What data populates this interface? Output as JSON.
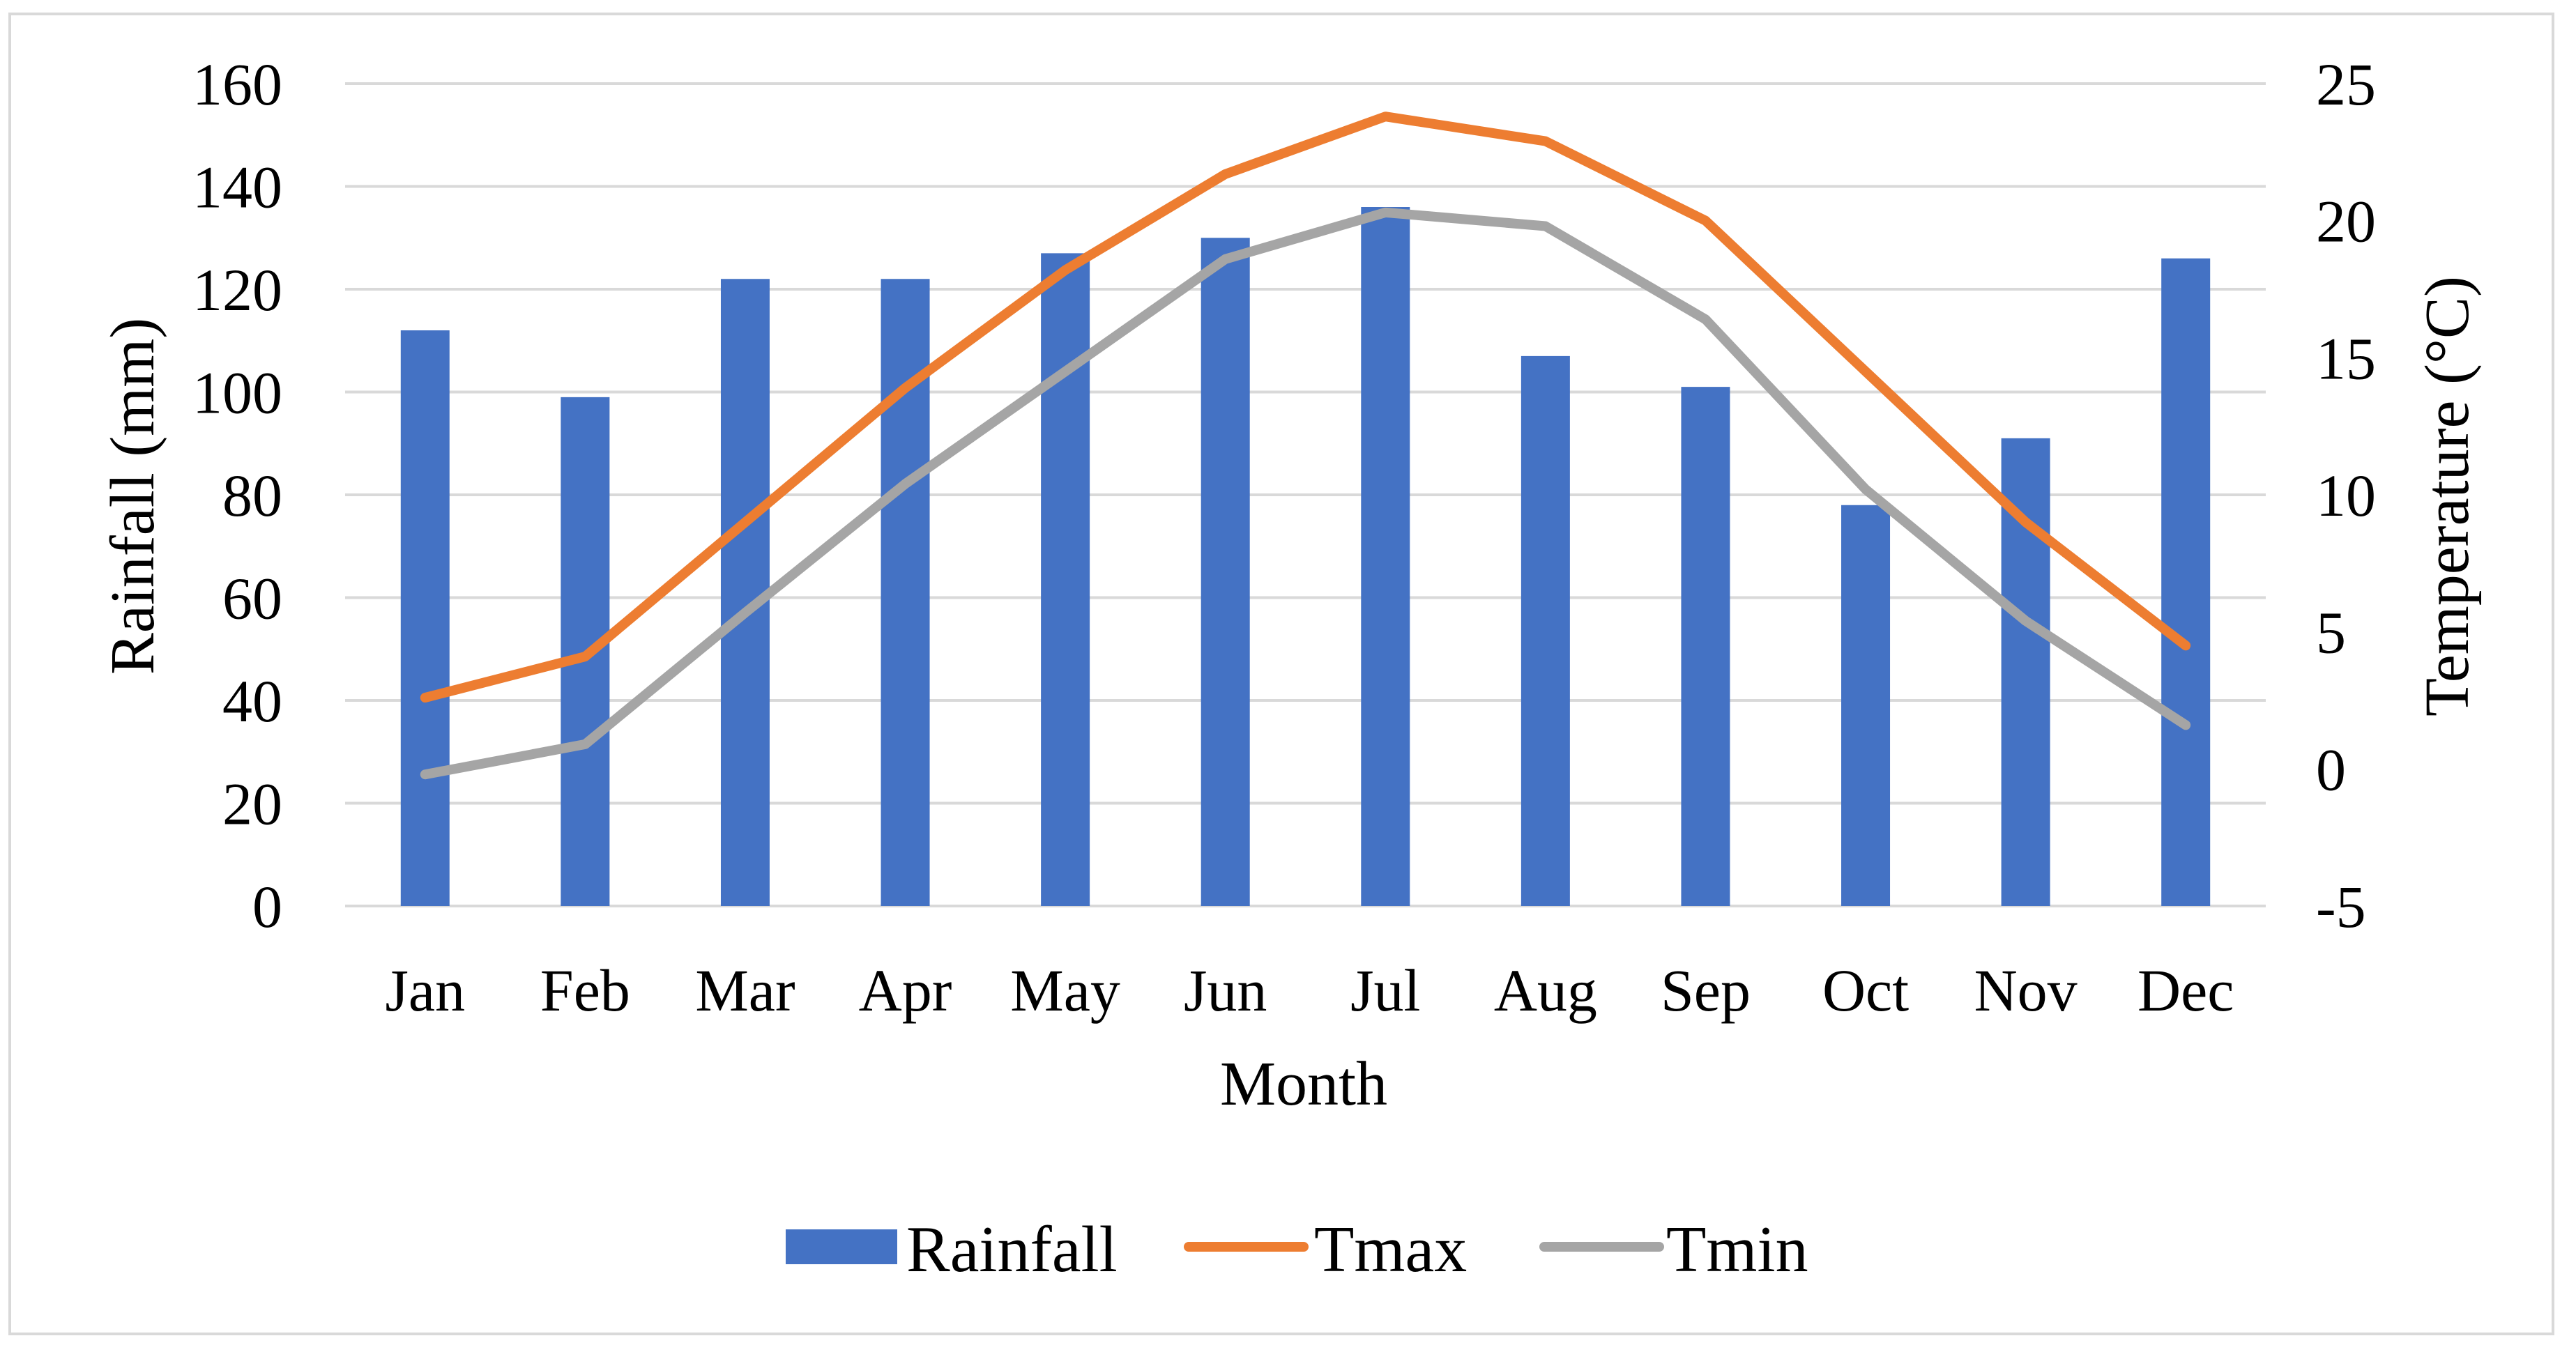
{
  "chart_data": {
    "type": "bar+line",
    "categories": [
      "Jan",
      "Feb",
      "Mar",
      "Apr",
      "May",
      "Jun",
      "Jul",
      "Aug",
      "Sep",
      "Oct",
      "Nov",
      "Dec"
    ],
    "xlabel": "Month",
    "ylabel_left": "Rainfall (mm)",
    "ylabel_right": "Temperature (°C)",
    "ylim_left": [
      0,
      160
    ],
    "yticks_left": [
      0,
      20,
      40,
      60,
      80,
      100,
      120,
      140,
      160
    ],
    "ylim_right": [
      -5,
      25
    ],
    "yticks_right": [
      -5,
      0,
      5,
      10,
      15,
      20,
      25
    ],
    "grid": true,
    "legend_position": "bottom",
    "series": [
      {
        "name": "Rainfall",
        "type": "bar",
        "axis": "left",
        "color": "#4472c4",
        "values": [
          112,
          99,
          122,
          122,
          127,
          130,
          136,
          107,
          101,
          78,
          91,
          126
        ]
      },
      {
        "name": "Tmax",
        "type": "line",
        "axis": "right",
        "color": "#ed7d31",
        "values": [
          2.6,
          4.1,
          9.0,
          13.9,
          18.2,
          21.7,
          23.8,
          22.9,
          20.0,
          14.5,
          9.0,
          4.5
        ]
      },
      {
        "name": "Tmin",
        "type": "line",
        "axis": "right",
        "color": "#a5a5a5",
        "values": [
          -0.2,
          0.9,
          5.7,
          10.4,
          14.5,
          18.6,
          20.3,
          19.8,
          16.4,
          10.2,
          5.4,
          1.6
        ]
      }
    ],
    "legend": [
      "Rainfall",
      "Tmax",
      "Tmin"
    ]
  },
  "colors": {
    "gridline": "#d9d9d9",
    "frame": "#d9d9d9"
  }
}
